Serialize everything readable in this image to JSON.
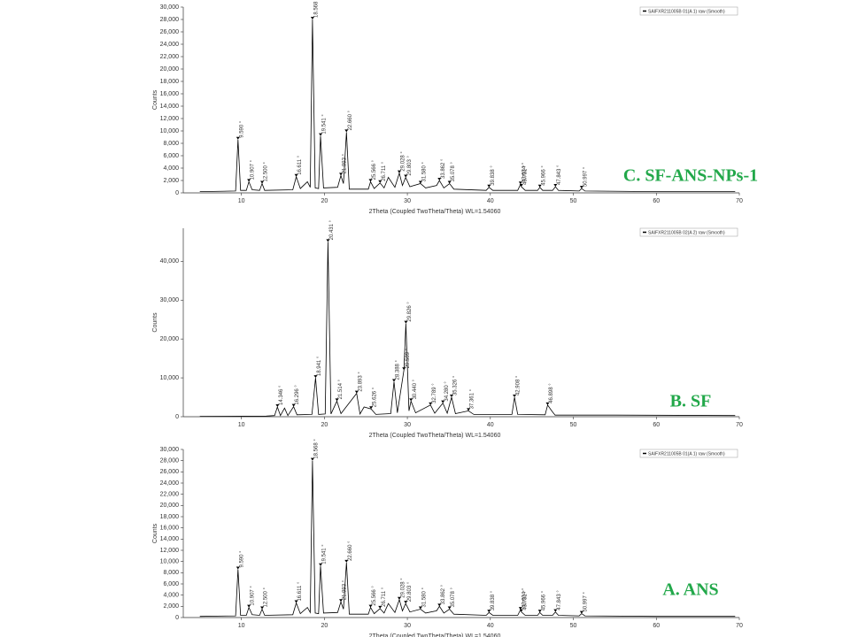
{
  "chart_data": [
    {
      "type": "line",
      "title": "C. SF-ANS-NPs-1",
      "xlabel": "2Theta (Coupled TwoTheta/Theta) WL=1.54060",
      "ylabel": "Counts",
      "xlim": [
        3,
        70
      ],
      "xticks": [
        10,
        20,
        30,
        40,
        50,
        60,
        70
      ],
      "ylim": [
        0,
        30000
      ],
      "yticks": [
        0,
        {
          "value": 2000,
          "label": "2,000"
        },
        {
          "value": 4000,
          "label": "4,000"
        },
        {
          "value": 6000,
          "label": "6,000"
        },
        {
          "value": 8000,
          "label": "8,000"
        },
        {
          "value": 10000,
          "label": "10,000"
        },
        {
          "value": 12000,
          "label": "12,000"
        },
        {
          "value": 14000,
          "label": "14,000"
        },
        {
          "value": 16000,
          "label": "16,000"
        },
        {
          "value": 18000,
          "label": "18,000"
        },
        {
          "value": 20000,
          "label": "20,000"
        },
        {
          "value": 22000,
          "label": "22,000"
        },
        {
          "value": 24000,
          "label": "24,000"
        },
        {
          "value": 26000,
          "label": "26,000"
        },
        {
          "value": 28000,
          "label": "28,000"
        },
        {
          "value": 30000,
          "label": "30,000"
        }
      ],
      "x": [
        5,
        9.3,
        9.59,
        9.9,
        10.6,
        10.907,
        11.3,
        12.2,
        12.5,
        12.8,
        16.2,
        16.611,
        17.1,
        17.953,
        18.3,
        18.568,
        18.9,
        19.3,
        19.541,
        19.9,
        21.6,
        21.993,
        22.3,
        22.66,
        23.0,
        25.3,
        25.566,
        26.0,
        26.711,
        27.2,
        27.708,
        28.5,
        29.028,
        29.4,
        29.803,
        30.3,
        31.58,
        32.2,
        33.521,
        33.862,
        34.4,
        35.078,
        35.6,
        39.5,
        39.838,
        40.3,
        43.3,
        43.634,
        43.731,
        44.2,
        45.7,
        45.966,
        46.3,
        47.5,
        47.843,
        48.2,
        50.7,
        50.997,
        51.4,
        60,
        69.5
      ],
      "series": [
        {
          "name": "SAIFXR211005B 01(A 1) raw (Smooth)",
          "color": "#000000",
          "values": [
            200,
            300,
            8600,
            400,
            400,
            1800,
            500,
            400,
            1500,
            400,
            500,
            2600,
            700,
            1800,
            900,
            28000,
            800,
            700,
            9200,
            800,
            900,
            2800,
            1500,
            9800,
            600,
            600,
            1800,
            700,
            1600,
            800,
            2500,
            900,
            3200,
            1200,
            2500,
            1000,
            1500,
            800,
            1200,
            2000,
            800,
            1500,
            600,
            400,
            900,
            400,
            400,
            1400,
            1000,
            400,
            400,
            900,
            400,
            400,
            1000,
            400,
            300,
            700,
            300,
            200,
            200
          ]
        }
      ],
      "annotations": [
        {
          "text": "9.590 °",
          "x": 9.59,
          "y": 8600
        },
        {
          "text": "10.907 °",
          "x": 10.907,
          "y": 1800
        },
        {
          "text": "12.500 °",
          "x": 12.5,
          "y": 1500
        },
        {
          "text": "16.611 °",
          "x": 16.611,
          "y": 2600
        },
        {
          "text": "18.568 °",
          "x": 18.568,
          "y": 28000
        },
        {
          "text": "19.541 °",
          "x": 19.541,
          "y": 9200
        },
        {
          "text": "21.993 °",
          "x": 21.993,
          "y": 2800
        },
        {
          "text": "22.660 °",
          "x": 22.66,
          "y": 9800
        },
        {
          "text": "25.566 °",
          "x": 25.566,
          "y": 1800
        },
        {
          "text": "26.711 °",
          "x": 26.711,
          "y": 1600
        },
        {
          "text": "29.028 °",
          "x": 29.028,
          "y": 3200
        },
        {
          "text": "29.803 °",
          "x": 29.803,
          "y": 2500
        },
        {
          "text": "31.580 °",
          "x": 31.58,
          "y": 1500
        },
        {
          "text": "33.862 °",
          "x": 33.862,
          "y": 2000
        },
        {
          "text": "35.078 °",
          "x": 35.078,
          "y": 1500
        },
        {
          "text": "39.838 °",
          "x": 39.838,
          "y": 900
        },
        {
          "text": "43.634 °",
          "x": 43.634,
          "y": 1400
        },
        {
          "text": "43.731 °",
          "x": 43.731,
          "y": 1000
        },
        {
          "text": "45.966 °",
          "x": 45.966,
          "y": 900
        },
        {
          "text": "47.843 °",
          "x": 47.843,
          "y": 1000
        },
        {
          "text": "50.997 °",
          "x": 50.997,
          "y": 700
        }
      ]
    },
    {
      "type": "line",
      "title": "B. SF",
      "xlabel": "2Theta (Coupled TwoTheta/Theta) WL=1.54060",
      "ylabel": "Counts",
      "xlim": [
        3,
        70
      ],
      "xticks": [
        10,
        20,
        30,
        40,
        50,
        60,
        70
      ],
      "ylim": [
        0,
        48500
      ],
      "yticks": [
        0,
        {
          "value": 10000,
          "label": "10,000"
        },
        {
          "value": 20000,
          "label": "20,000"
        },
        {
          "value": 30000,
          "label": "30,000"
        },
        {
          "value": 40000,
          "label": "40,000"
        }
      ],
      "x": [
        5,
        13,
        14.0,
        14.346,
        14.7,
        15.2,
        15.6,
        16.296,
        16.7,
        18.5,
        18.941,
        19.3,
        20.1,
        20.431,
        20.8,
        21.514,
        22.0,
        23.893,
        24.3,
        24.79,
        25.626,
        26.2,
        28.0,
        28.388,
        28.8,
        29.589,
        29.826,
        30.2,
        30.44,
        31.0,
        32.789,
        33.3,
        34.28,
        34.8,
        35.326,
        35.8,
        37.361,
        38.0,
        42.6,
        42.908,
        43.3,
        46.6,
        46.898,
        47.394,
        47.8,
        55,
        69.5
      ],
      "series": [
        {
          "name": "SAIFXR211005B 02(A 2) raw (Smooth)",
          "color": "#000000",
          "values": [
            100,
            150,
            300,
            2500,
            300,
            2200,
            300,
            2600,
            500,
            600,
            10000,
            600,
            700,
            45000,
            700,
            4000,
            800,
            6000,
            700,
            2500,
            2000,
            600,
            800,
            9000,
            1000,
            12000,
            24000,
            1500,
            4000,
            1000,
            3000,
            900,
            3500,
            900,
            5000,
            800,
            1500,
            600,
            600,
            5000,
            600,
            500,
            3000,
            1500,
            400,
            400,
            300
          ]
        }
      ],
      "annotations": [
        {
          "text": "14.346 °",
          "x": 14.346,
          "y": 2500
        },
        {
          "text": "16.296 °",
          "x": 16.296,
          "y": 2600
        },
        {
          "text": "18.941 °",
          "x": 18.941,
          "y": 10000
        },
        {
          "text": "20.431 °",
          "x": 20.431,
          "y": 45000
        },
        {
          "text": "21.514 °",
          "x": 21.514,
          "y": 4000
        },
        {
          "text": "23.893 °",
          "x": 23.893,
          "y": 6000
        },
        {
          "text": "25.626 °",
          "x": 25.626,
          "y": 2000
        },
        {
          "text": "28.388 °",
          "x": 28.388,
          "y": 9000
        },
        {
          "text": "29.589 °",
          "x": 29.589,
          "y": 12000
        },
        {
          "text": "29.826 °",
          "x": 29.826,
          "y": 24000
        },
        {
          "text": "30.440 °",
          "x": 30.44,
          "y": 4000
        },
        {
          "text": "32.789 °",
          "x": 32.789,
          "y": 3000
        },
        {
          "text": "34.280 °",
          "x": 34.28,
          "y": 3500
        },
        {
          "text": "35.326 °",
          "x": 35.326,
          "y": 5000
        },
        {
          "text": "37.361 °",
          "x": 37.361,
          "y": 1500
        },
        {
          "text": "42.908 °",
          "x": 42.908,
          "y": 5000
        },
        {
          "text": "46.898 °",
          "x": 46.898,
          "y": 3000
        }
      ]
    },
    {
      "type": "line",
      "title": "A. ANS",
      "xlabel": "2Theta (Coupled TwoTheta/Theta) WL=1.54060",
      "ylabel": "Counts",
      "xlim": [
        3,
        70
      ],
      "xticks": [
        10,
        20,
        30,
        40,
        50,
        60,
        70
      ],
      "ylim": [
        0,
        30000
      ],
      "yticks": [
        0,
        {
          "value": 2000,
          "label": "2,000"
        },
        {
          "value": 4000,
          "label": "4,000"
        },
        {
          "value": 6000,
          "label": "6,000"
        },
        {
          "value": 8000,
          "label": "8,000"
        },
        {
          "value": 10000,
          "label": "10,000"
        },
        {
          "value": 12000,
          "label": "12,000"
        },
        {
          "value": 14000,
          "label": "14,000"
        },
        {
          "value": 16000,
          "label": "16,000"
        },
        {
          "value": 18000,
          "label": "18,000"
        },
        {
          "value": 20000,
          "label": "20,000"
        },
        {
          "value": 22000,
          "label": "22,000"
        },
        {
          "value": 24000,
          "label": "24,000"
        },
        {
          "value": 26000,
          "label": "26,000"
        },
        {
          "value": 28000,
          "label": "28,000"
        },
        {
          "value": 30000,
          "label": "30,000"
        }
      ],
      "x": [
        5,
        9.3,
        9.59,
        9.9,
        10.6,
        10.907,
        11.3,
        12.2,
        12.5,
        12.8,
        16.2,
        16.611,
        17.1,
        17.953,
        18.3,
        18.568,
        18.9,
        19.3,
        19.541,
        19.9,
        21.6,
        21.993,
        22.3,
        22.66,
        23.0,
        25.3,
        25.566,
        26.0,
        26.711,
        27.2,
        27.708,
        28.5,
        29.028,
        29.4,
        29.803,
        30.3,
        31.58,
        32.2,
        33.521,
        33.862,
        34.4,
        35.078,
        35.6,
        39.5,
        39.838,
        40.3,
        43.3,
        43.634,
        43.731,
        44.2,
        45.7,
        45.966,
        46.3,
        47.5,
        47.843,
        48.2,
        50.7,
        50.997,
        51.4,
        60,
        69.5
      ],
      "series": [
        {
          "name": "SAIFXR211005B 01(A 1) raw (Smooth)",
          "color": "#000000",
          "values": [
            200,
            300,
            8600,
            400,
            400,
            1800,
            500,
            400,
            1500,
            400,
            500,
            2600,
            700,
            1800,
            900,
            28000,
            800,
            700,
            9200,
            800,
            900,
            2800,
            1500,
            9800,
            600,
            600,
            1800,
            700,
            1600,
            800,
            2500,
            900,
            3200,
            1200,
            2500,
            1000,
            1500,
            800,
            1200,
            2000,
            800,
            1500,
            600,
            400,
            900,
            400,
            400,
            1400,
            1000,
            400,
            400,
            900,
            400,
            400,
            1000,
            400,
            300,
            700,
            300,
            200,
            200
          ]
        }
      ],
      "annotations": [
        {
          "text": "9.590 °",
          "x": 9.59,
          "y": 8600
        },
        {
          "text": "10.907 °",
          "x": 10.907,
          "y": 1800
        },
        {
          "text": "12.500 °",
          "x": 12.5,
          "y": 1500
        },
        {
          "text": "16.611 °",
          "x": 16.611,
          "y": 2600
        },
        {
          "text": "18.568 °",
          "x": 18.568,
          "y": 28000
        },
        {
          "text": "19.541 °",
          "x": 19.541,
          "y": 9200
        },
        {
          "text": "21.993 °",
          "x": 21.993,
          "y": 2800
        },
        {
          "text": "22.660 °",
          "x": 22.66,
          "y": 9800
        },
        {
          "text": "25.566 °",
          "x": 25.566,
          "y": 1800
        },
        {
          "text": "26.711 °",
          "x": 26.711,
          "y": 1600
        },
        {
          "text": "29.028 °",
          "x": 29.028,
          "y": 3200
        },
        {
          "text": "29.803 °",
          "x": 29.803,
          "y": 2500
        },
        {
          "text": "31.580 °",
          "x": 31.58,
          "y": 1500
        },
        {
          "text": "33.862 °",
          "x": 33.862,
          "y": 2000
        },
        {
          "text": "35.078 °",
          "x": 35.078,
          "y": 1500
        },
        {
          "text": "39.838 °",
          "x": 39.838,
          "y": 900
        },
        {
          "text": "43.634 °",
          "x": 43.634,
          "y": 1400
        },
        {
          "text": "43.731 °",
          "x": 43.731,
          "y": 1000
        },
        {
          "text": "45.966 °",
          "x": 45.966,
          "y": 900
        },
        {
          "text": "47.843 °",
          "x": 47.843,
          "y": 1000
        },
        {
          "text": "50.997 °",
          "x": 50.997,
          "y": 700
        }
      ]
    }
  ]
}
